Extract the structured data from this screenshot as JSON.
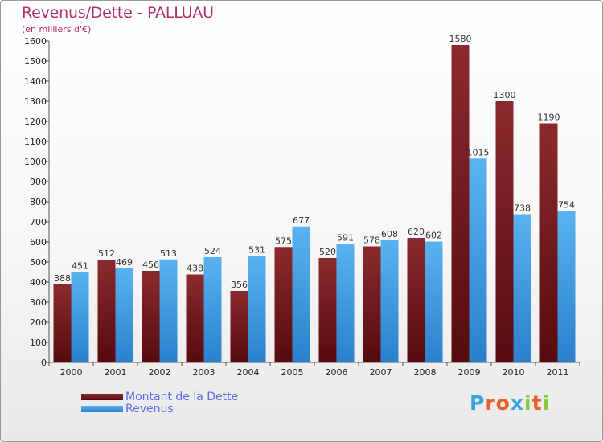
{
  "title": "Revenus/Dette - PALLUAU",
  "subtitle": "(en milliers d'€)",
  "logo": "Proxiti",
  "logo_colors": [
    "#3aa0e0",
    "#e85f2a",
    "#e85f2a",
    "#3aa0e0",
    "#8cc63f",
    "#e85f2a",
    "#8cc63f"
  ],
  "colors": {
    "dette": "#7a1a1d",
    "revenus": "#3a9ee8",
    "title": "#b0306a",
    "legend_text": "#5a6ee8"
  },
  "chart_data": {
    "type": "bar",
    "categories": [
      "2000",
      "2001",
      "2002",
      "2003",
      "2004",
      "2005",
      "2006",
      "2007",
      "2008",
      "2009",
      "2010",
      "2011"
    ],
    "series": [
      {
        "name": "Montant de la Dette",
        "values": [
          388,
          512,
          456,
          438,
          356,
          575,
          520,
          578,
          620,
          1580,
          1300,
          1190
        ]
      },
      {
        "name": "Revenus",
        "values": [
          451,
          469,
          513,
          524,
          531,
          677,
          591,
          608,
          602,
          1015,
          738,
          754
        ]
      }
    ],
    "ylim": [
      0,
      1600
    ],
    "yticks": [
      0,
      100,
      200,
      300,
      400,
      500,
      600,
      700,
      800,
      900,
      1000,
      1100,
      1200,
      1300,
      1400,
      1500,
      1600
    ],
    "grid": false,
    "legend_placement": "bottom-left"
  }
}
